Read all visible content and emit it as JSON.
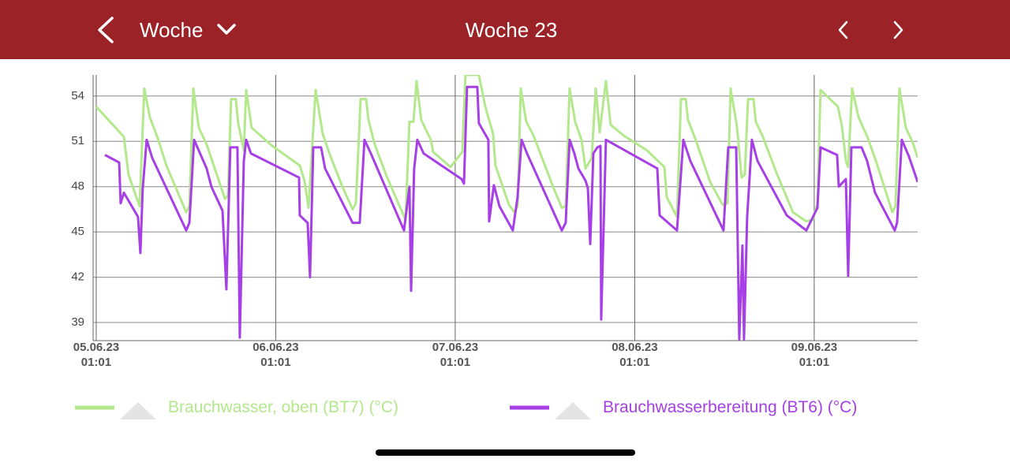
{
  "header": {
    "period": "Woche",
    "title": "Woche 23"
  },
  "chart_data": {
    "type": "line",
    "ylim": [
      37.8,
      55.4
    ],
    "yticks": [
      39,
      42,
      45,
      48,
      51,
      54
    ],
    "grid": true,
    "xlim": [
      "2023-06-05 00:36",
      "2023-06-09 14:51"
    ],
    "xticks": [
      {
        "value": "2023-06-05 01:01",
        "label": "05.06.23\n01:01"
      },
      {
        "value": "2023-06-06 01:01",
        "label": "06.06.23\n01:01"
      },
      {
        "value": "2023-06-07 01:01",
        "label": "07.06.23\n01:01"
      },
      {
        "value": "2023-06-08 01:01",
        "label": "08.06.23\n01:01"
      },
      {
        "value": "2023-06-09 01:01",
        "label": "09.06.23\n01:01"
      }
    ],
    "series": [
      {
        "name": "Brauchwasser, oben (BT7) (°C)",
        "color": "#b3e88c",
        "x": [
          "2023-06-05 01:01",
          "2023-06-05 04:43",
          "2023-06-05 05:20",
          "2023-06-05 06:49",
          "2023-06-05 07:27",
          "2023-06-05 08:11",
          "2023-06-05 09:15",
          "2023-06-05 10:24",
          "2023-06-05 13:03",
          "2023-06-05 13:28",
          "2023-06-05 14:00",
          "2023-06-05 14:44",
          "2023-06-05 15:47",
          "2023-06-05 18:13",
          "2023-06-05 18:38",
          "2023-06-05 19:03",
          "2023-06-05 19:41",
          "2023-06-05 20:00",
          "2023-06-05 20:45",
          "2023-06-05 21:04",
          "2023-06-05 21:48",
          "2023-06-06 00:33",
          "2023-06-06 04:14",
          "2023-06-06 04:52",
          "2023-06-06 05:24",
          "2023-06-06 06:21",
          "2023-06-06 07:18",
          "2023-06-06 08:21",
          "2023-06-06 09:56",
          "2023-06-06 11:18",
          "2023-06-06 11:44",
          "2023-06-06 12:22",
          "2023-06-06 13:06",
          "2023-06-06 13:25",
          "2023-06-06 14:15",
          "2023-06-06 15:50",
          "2023-06-06 18:22",
          "2023-06-06 18:54",
          "2023-06-06 19:26",
          "2023-06-06 19:51",
          "2023-06-06 20:29",
          "2023-06-06 21:45",
          "2023-06-06 22:04",
          "2023-06-07 00:23",
          "2023-06-07 01:58",
          "2023-06-07 02:23",
          "2023-06-07 04:11",
          "2023-06-07 05:02",
          "2023-06-07 06:05",
          "2023-06-07 06:24",
          "2023-06-07 08:12",
          "2023-06-07 08:56",
          "2023-06-07 09:21",
          "2023-06-07 09:47",
          "2023-06-07 10:31",
          "2023-06-07 11:28",
          "2023-06-07 14:06",
          "2023-06-07 15:16",
          "2023-06-07 15:47",
          "2023-06-07 16:19",
          "2023-06-07 17:03",
          "2023-06-07 17:54",
          "2023-06-07 18:26",
          "2023-06-07 19:16",
          "2023-06-07 19:48",
          "2023-06-07 20:20",
          "2023-06-07 21:10",
          "2023-06-07 21:48",
          "2023-06-07 23:29",
          "2023-06-08 02:39",
          "2023-06-08 04:59",
          "2023-06-08 05:18",
          "2023-06-08 06:40",
          "2023-06-08 07:12",
          "2023-06-08 07:50",
          "2023-06-08 08:09",
          "2023-06-08 09:06",
          "2023-06-08 11:06",
          "2023-06-08 12:47",
          "2023-06-08 13:25",
          "2023-06-08 13:50",
          "2023-06-08 14:41",
          "2023-06-08 15:19",
          "2023-06-08 15:44",
          "2023-06-08 16:10",
          "2023-06-08 16:54",
          "2023-06-08 17:13",
          "2023-06-08 18:04",
          "2023-06-08 20:04",
          "2023-06-08 22:10",
          "2023-06-08 23:58",
          "2023-06-09 00:49",
          "2023-06-09 01:27",
          "2023-06-09 01:52",
          "2023-06-09 04:11",
          "2023-06-09 04:43",
          "2023-06-09 05:15",
          "2023-06-09 05:33",
          "2023-06-09 06:05",
          "2023-06-09 06:56",
          "2023-06-09 08:12",
          "2023-06-09 09:28",
          "2023-06-09 11:28",
          "2023-06-09 11:53",
          "2023-06-09 12:25",
          "2023-06-09 13:16",
          "2023-06-09 14:13",
          "2023-06-09 14:51"
        ],
        "values": [
          53.3,
          51.3,
          48.8,
          46.7,
          54.5,
          52.6,
          51.2,
          49.4,
          46.3,
          46.7,
          54.5,
          51.9,
          50.8,
          47.2,
          47.4,
          53.8,
          53.8,
          52.2,
          50.4,
          54.4,
          51.9,
          50.7,
          49.4,
          48.4,
          46.6,
          54.4,
          51.5,
          50.0,
          48.0,
          46.5,
          46.9,
          53.8,
          53.8,
          52.4,
          50.8,
          48.7,
          45.8,
          52.3,
          52.3,
          55.0,
          52.4,
          51.1,
          50.3,
          49.3,
          50.3,
          55.4,
          55.4,
          53.3,
          51.5,
          49.4,
          46.8,
          46.3,
          46.7,
          54.5,
          52.3,
          51.4,
          48.0,
          46.6,
          46.7,
          54.5,
          52.3,
          51.1,
          49.2,
          49.9,
          54.5,
          51.6,
          55.0,
          52.1,
          51.4,
          50.4,
          49.3,
          47.3,
          46.0,
          53.8,
          53.8,
          52.4,
          51.2,
          48.3,
          46.8,
          46.9,
          54.5,
          52.0,
          48.6,
          48.8,
          53.8,
          53.8,
          52.3,
          51.4,
          48.8,
          46.3,
          45.7,
          45.8,
          46.9,
          54.4,
          53.3,
          52.0,
          49.7,
          49.3,
          54.5,
          52.6,
          51.2,
          49.4,
          46.3,
          46.7,
          54.5,
          51.9,
          50.9,
          49.9
        ]
      },
      {
        "name": "Brauchwasserbereitung (BT6) (°C)",
        "color": "#a640e6",
        "x": [
          "2023-06-05 02:11",
          "2023-06-05 04:05",
          "2023-06-05 04:17",
          "2023-06-05 04:43",
          "2023-06-05 06:36",
          "2023-06-05 06:55",
          "2023-06-05 07:14",
          "2023-06-05 07:46",
          "2023-06-05 08:30",
          "2023-06-05 13:03",
          "2023-06-05 13:28",
          "2023-06-05 14:06",
          "2023-06-05 15:47",
          "2023-06-05 16:25",
          "2023-06-05 17:54",
          "2023-06-05 18:25",
          "2023-06-05 18:57",
          "2023-06-05 19:54",
          "2023-06-05 20:13",
          "2023-06-05 20:45",
          "2023-06-05 21:04",
          "2023-06-05 21:42",
          "2023-06-06 04:08",
          "2023-06-06 04:14",
          "2023-06-06 05:17",
          "2023-06-06 05:36",
          "2023-06-06 06:02",
          "2023-06-06 07:05",
          "2023-06-06 07:37",
          "2023-06-06 11:18",
          "2023-06-06 12:15",
          "2023-06-06 12:53",
          "2023-06-06 13:44",
          "2023-06-06 18:10",
          "2023-06-06 18:54",
          "2023-06-06 19:07",
          "2023-06-06 19:32",
          "2023-06-06 19:57",
          "2023-06-06 20:48",
          "2023-06-07 01:52",
          "2023-06-07 02:11",
          "2023-06-07 02:36",
          "2023-06-07 03:58",
          "2023-06-07 04:11",
          "2023-06-07 05:27",
          "2023-06-07 05:33",
          "2023-06-07 06:11",
          "2023-06-07 06:56",
          "2023-06-07 08:43",
          "2023-06-07 09:21",
          "2023-06-07 09:53",
          "2023-06-07 10:37",
          "2023-06-07 15:16",
          "2023-06-07 15:47",
          "2023-06-07 16:19",
          "2023-06-07 16:57",
          "2023-06-07 17:29",
          "2023-06-07 18:26",
          "2023-06-07 18:45",
          "2023-06-07 19:04",
          "2023-06-07 19:29",
          "2023-06-07 20:01",
          "2023-06-07 20:26",
          "2023-06-07 20:32",
          "2023-06-07 21:10",
          "2023-06-08 04:02",
          "2023-06-08 04:21",
          "2023-06-08 06:40",
          "2023-06-08 07:31",
          "2023-06-08 08:27",
          "2023-06-08 12:53",
          "2023-06-08 13:31",
          "2023-06-08 14:35",
          "2023-06-08 15:00",
          "2023-06-08 15:25",
          "2023-06-08 15:38",
          "2023-06-08 16:03",
          "2023-06-08 16:41",
          "2023-06-08 17:26",
          "2023-06-08 21:20",
          "2023-06-08 23:58",
          "2023-06-09 01:27",
          "2023-06-09 01:52",
          "2023-06-09 04:05",
          "2023-06-09 04:18",
          "2023-06-09 05:15",
          "2023-06-09 05:33",
          "2023-06-09 05:59",
          "2023-06-09 07:21",
          "2023-06-09 08:05",
          "2023-06-09 09:09",
          "2023-06-09 11:47",
          "2023-06-09 12:06",
          "2023-06-09 12:44",
          "2023-06-09 13:41",
          "2023-06-09 14:51"
        ],
        "values": [
          50.1,
          49.6,
          46.9,
          47.6,
          46.0,
          43.6,
          47.9,
          51.1,
          49.9,
          45.1,
          45.6,
          51.1,
          49.2,
          48.0,
          46.4,
          41.2,
          50.6,
          50.6,
          38.0,
          49.7,
          51.1,
          50.2,
          48.6,
          46.1,
          45.6,
          42.0,
          50.6,
          50.6,
          49.2,
          45.6,
          45.6,
          51.1,
          50.2,
          45.1,
          48.0,
          41.1,
          49.2,
          51.1,
          50.2,
          48.5,
          48.2,
          54.6,
          54.6,
          52.2,
          51.1,
          45.7,
          48.1,
          46.7,
          45.1,
          47.3,
          51.1,
          50.2,
          45.1,
          45.6,
          51.1,
          50.2,
          49.2,
          48.4,
          47.9,
          44.2,
          50.2,
          50.6,
          50.7,
          39.2,
          51.1,
          49.2,
          46.1,
          45.1,
          51.1,
          49.7,
          45.1,
          50.6,
          50.6,
          37.9,
          44.1,
          37.9,
          46.0,
          51.1,
          49.7,
          46.1,
          45.1,
          46.6,
          50.6,
          50.1,
          48.0,
          48.5,
          42.1,
          50.6,
          50.6,
          49.7,
          47.6,
          45.1,
          45.6,
          51.1,
          50.0,
          48.3
        ]
      }
    ]
  }
}
